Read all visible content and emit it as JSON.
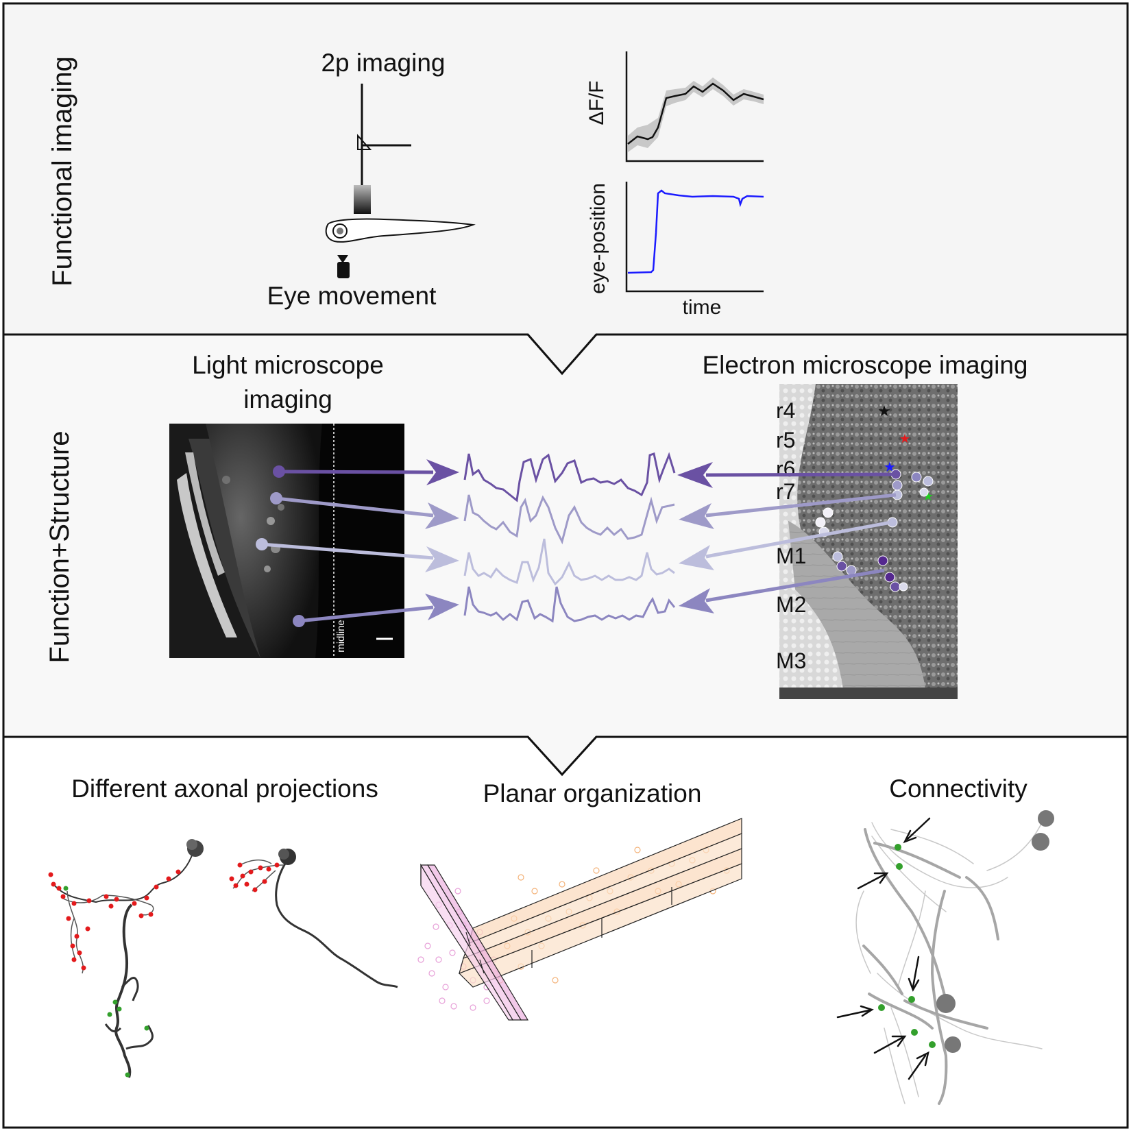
{
  "panels": {
    "functional": {
      "side_label": "Functional imaging",
      "imaging_label": "2p imaging",
      "eye_label": "Eye movement",
      "dff_label": "ΔF/F",
      "eye_position_label": "eye-position",
      "time_label": "time"
    },
    "structure": {
      "side_label": "Function+Structure",
      "light_title_line1": "Light microscope",
      "light_title_line2": "imaging",
      "em_title": "Electron microscope imaging",
      "midline_label": "midline",
      "em_region_labels": [
        "r4",
        "r5",
        "r6",
        "r7",
        "M1",
        "M2",
        "M3"
      ]
    },
    "results": {
      "axonal_title": "Different axonal projections",
      "planar_title": "Planar organization",
      "connectivity_title": "Connectivity"
    }
  },
  "colors": {
    "panel_bg_top": "#f5f5f5",
    "panel_bg_mid": "#f8f8f8",
    "trace_colors": [
      "#6a51a3",
      "#9e9ac8",
      "#bcbddc",
      "#8c86c0"
    ],
    "eye_trace": "#1a1aff",
    "synapse_red": "#e31a1c",
    "synapse_green": "#33a02c",
    "planar_pink": "#e7a0d8",
    "planar_orange": "#f4b37a",
    "neuron_gray": "#a6a6a6"
  }
}
